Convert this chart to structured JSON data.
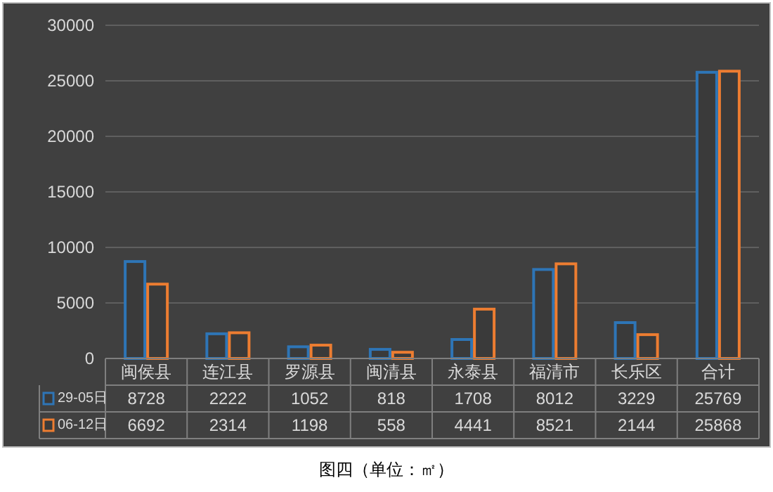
{
  "chart_data": {
    "type": "bar",
    "categories": [
      "闽侯县",
      "连江县",
      "罗源县",
      "闽清县",
      "永泰县",
      "福清市",
      "长乐区",
      "合计"
    ],
    "series": [
      {
        "name": "29-05日",
        "color": "#2e75b6",
        "values": [
          8728,
          2222,
          1052,
          818,
          1708,
          8012,
          3229,
          25769
        ]
      },
      {
        "name": "06-12日",
        "color": "#ed7d31",
        "values": [
          6692,
          2314,
          1198,
          558,
          4441,
          8521,
          2144,
          25868
        ]
      }
    ],
    "ylim": [
      0,
      30000
    ],
    "yticks": [
      0,
      5000,
      10000,
      15000,
      20000,
      25000,
      30000
    ],
    "grid": "y",
    "legend": "bottom",
    "data_labels": true,
    "annotations": [
      "图四（单位：㎡）"
    ]
  }
}
